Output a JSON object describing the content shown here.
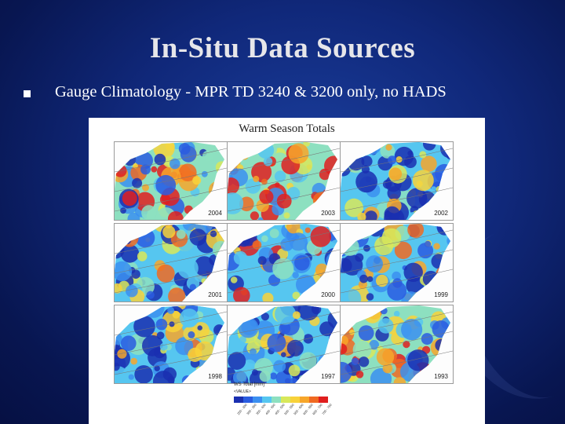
{
  "slide": {
    "title": "In-Situ Data Sources",
    "bullets": [
      "Gauge Climatology  - MPR TD 3240 & 3200 only, no HADS"
    ]
  },
  "figure": {
    "title": "Warm Season Totals",
    "panels": [
      {
        "year": "2004"
      },
      {
        "year": "2003"
      },
      {
        "year": "2002"
      },
      {
        "year": "2001"
      },
      {
        "year": "2000"
      },
      {
        "year": "1999"
      },
      {
        "year": "1998"
      },
      {
        "year": "1997"
      },
      {
        "year": "1993"
      }
    ],
    "legend": {
      "title": "WS Total [mm]",
      "subtitle": "<VALUE>",
      "colors": [
        "#1a2fb0",
        "#2a5ce0",
        "#3b8ff0",
        "#56c6f0",
        "#8de0c0",
        "#d8e85a",
        "#f8d23a",
        "#f7a62a",
        "#f06a22",
        "#e01e1e"
      ],
      "ticks": [
        "250 - 300",
        "300 - 350",
        "350 - 400",
        "400 - 450",
        "450 - 500",
        "500 - 550",
        "550 - 600",
        "600 - 650",
        "650 - 700",
        "700 - 750"
      ]
    }
  },
  "colors": {
    "background": "#10287a",
    "title": "#e6e6ea",
    "text": "#ffffff"
  }
}
